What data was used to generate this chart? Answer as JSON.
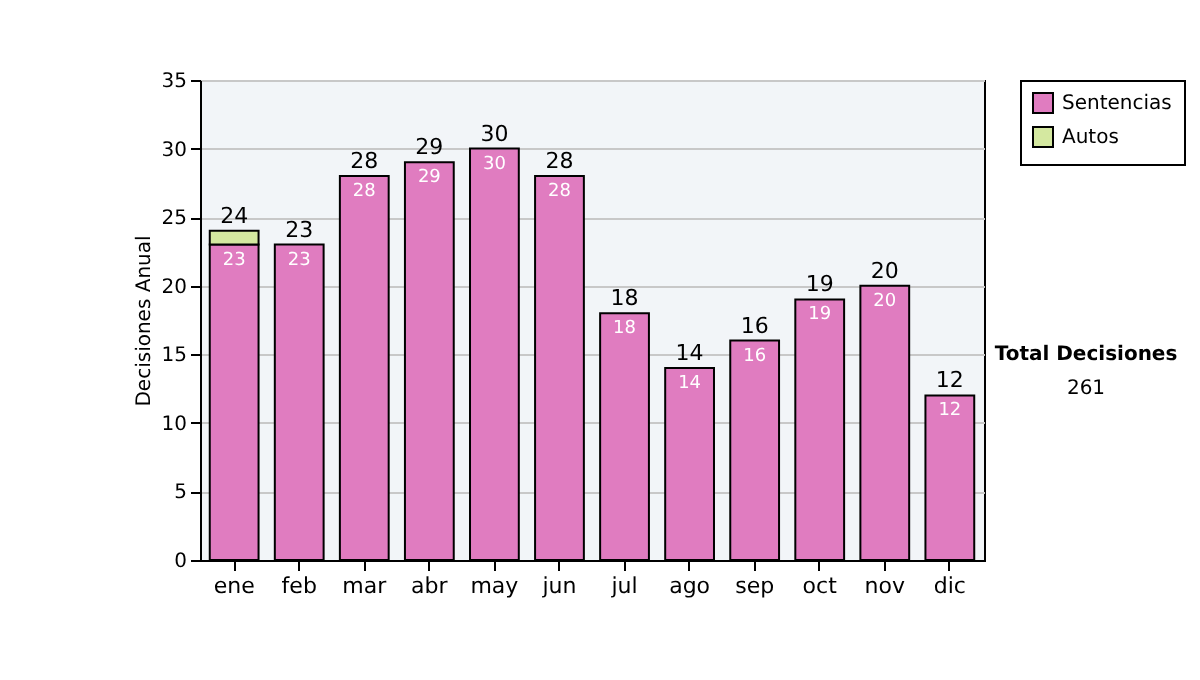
{
  "chart_data": {
    "type": "bar",
    "stacked": true,
    "ylabel": "Decisiones Anual",
    "categories": [
      "ene",
      "feb",
      "mar",
      "abr",
      "may",
      "jun",
      "jul",
      "ago",
      "sep",
      "oct",
      "nov",
      "dic"
    ],
    "series": [
      {
        "name": "Sentencias",
        "color": "#e07cc0",
        "values": [
          23,
          23,
          28,
          29,
          30,
          28,
          18,
          14,
          16,
          19,
          20,
          12
        ],
        "value_labels": [
          "23",
          "23",
          "28",
          "29",
          "30",
          "28",
          "18",
          "14",
          "16",
          "19",
          "20",
          "12"
        ]
      },
      {
        "name": "Autos",
        "color": "#d4e8a0",
        "values": [
          1,
          null,
          null,
          null,
          null,
          null,
          null,
          null,
          null,
          null,
          null,
          null
        ]
      }
    ],
    "totals": [
      "24",
      "23",
      "28",
      "29",
      "30",
      "28",
      "18",
      "14",
      "16",
      "19",
      "20",
      "12"
    ],
    "ylim": [
      0,
      35
    ],
    "yticks": [
      0,
      5,
      10,
      15,
      20,
      25,
      30,
      35
    ],
    "grid": "y",
    "legend": "right",
    "annotations": [
      "Total Decisiones",
      "261"
    ]
  }
}
